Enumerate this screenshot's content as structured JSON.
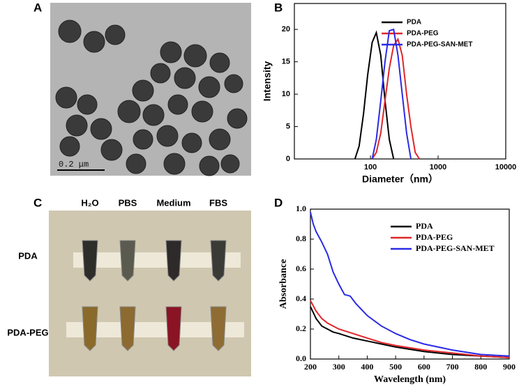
{
  "panel_labels": [
    "A",
    "B",
    "C",
    "D"
  ],
  "tem_image": {
    "scale_bar": "0.2 μm"
  },
  "photo": {
    "columns": [
      "H₂O",
      "PBS",
      "Medium",
      "FBS"
    ],
    "rows": [
      "PDA",
      "PDA-PEG"
    ]
  },
  "chart_data": [
    {
      "type": "line",
      "xlabel": "Diameter（nm）",
      "ylabel": "Intensity",
      "xscale": "log",
      "xlim": [
        7.5,
        10000
      ],
      "xticks": [
        100,
        1000,
        10000
      ],
      "ylim": [
        0,
        24
      ],
      "yticks": [
        0,
        5,
        10,
        15,
        20
      ],
      "legend": "upper right",
      "font": "sans",
      "series": [
        {
          "name": "PDA",
          "color": "#000000",
          "x": [
            59,
            68,
            79,
            91,
            106,
            122,
            142,
            164,
            190,
            220
          ],
          "values": [
            0,
            2,
            7,
            13,
            18,
            19.5,
            16,
            9,
            3,
            0
          ]
        },
        {
          "name": "PDA-PEG",
          "color": "#e0262a",
          "x": [
            106,
            122,
            142,
            164,
            190,
            220,
            255,
            295,
            342,
            396,
            459,
            530
          ],
          "values": [
            0,
            1,
            4,
            9,
            14,
            17.5,
            18.5,
            16,
            10,
            5,
            1,
            0
          ]
        },
        {
          "name": "PDA-PEG-SAN-MET",
          "color": "#2a2ae6",
          "x": [
            106,
            122,
            142,
            164,
            190,
            220,
            255,
            295,
            342,
            396
          ],
          "values": [
            0,
            3,
            9,
            15,
            19.8,
            20,
            16,
            10,
            4,
            0
          ]
        }
      ]
    },
    {
      "type": "line",
      "xlabel": "Wavelength (nm)",
      "ylabel": "Absorbance",
      "xscale": "linear",
      "xlim": [
        200,
        900
      ],
      "xticks": [
        200,
        300,
        400,
        500,
        600,
        700,
        800,
        900
      ],
      "ylim": [
        0,
        1.0
      ],
      "yticks": [
        {
          "value": 0,
          "label": "0.0"
        },
        0.2,
        0.4,
        0.6,
        0.8,
        {
          "value": 1,
          "label": "1.0"
        }
      ],
      "legend": "upper right",
      "font": "serif",
      "series": [
        {
          "name": "PDA",
          "color": "#000000",
          "x": [
            200,
            220,
            240,
            260,
            280,
            300,
            350,
            400,
            450,
            500,
            600,
            700,
            800,
            900
          ],
          "values": [
            0.35,
            0.27,
            0.22,
            0.2,
            0.18,
            0.17,
            0.14,
            0.12,
            0.1,
            0.08,
            0.05,
            0.03,
            0.02,
            0.01
          ]
        },
        {
          "name": "PDA-PEG",
          "color": "#e0262a",
          "x": [
            200,
            220,
            240,
            260,
            280,
            300,
            350,
            400,
            450,
            500,
            600,
            700,
            800,
            900
          ],
          "values": [
            0.39,
            0.32,
            0.27,
            0.24,
            0.22,
            0.2,
            0.17,
            0.14,
            0.11,
            0.09,
            0.06,
            0.04,
            0.02,
            0.01
          ]
        },
        {
          "name": "PDA-PEG-SAN-MET",
          "color": "#2a2ae6",
          "x": [
            200,
            210,
            220,
            240,
            260,
            280,
            300,
            320,
            340,
            360,
            400,
            450,
            500,
            550,
            600,
            700,
            800,
            900
          ],
          "values": [
            0.98,
            0.9,
            0.85,
            0.78,
            0.7,
            0.58,
            0.5,
            0.43,
            0.42,
            0.37,
            0.29,
            0.22,
            0.17,
            0.13,
            0.1,
            0.06,
            0.03,
            0.02
          ]
        }
      ]
    }
  ]
}
